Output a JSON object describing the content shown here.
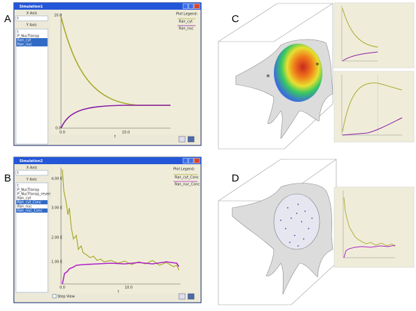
{
  "labels": {
    "a": "A",
    "b": "B",
    "c": "C",
    "d": "D"
  },
  "window_a": {
    "title": "Simulation1",
    "x_axis": "X Axis",
    "x_value": "t",
    "y_axis": "Y Axis",
    "variables": [
      "t",
      "P_NucTransp",
      "Ran_cyt",
      "Ran_nuc"
    ],
    "legend_title": "Plot Legend:",
    "legend": [
      "Ran_cyt",
      "Ran_nuc"
    ],
    "yticks": [
      "10.0",
      "0.0"
    ],
    "xticks": [
      "0.0",
      "10.0"
    ],
    "x_label": "t"
  },
  "window_b": {
    "title": "Simulation2",
    "x_axis": "X Axis",
    "x_value": "t",
    "y_axis": "Y Axis",
    "variables": [
      "t",
      "P_NucTransp",
      "P_NucTransp_reverse",
      "Ran_cyt",
      "Ran_cyt_Conc",
      "Ran_nuc",
      "Ran_nuc_Conc"
    ],
    "legend_title": "Plot Legend:",
    "legend": [
      "Ran_cyt_Conc",
      "Ran_nuc_Conc"
    ],
    "yticks": [
      "4.00 E",
      "3.00 E",
      "2.00 E",
      "1.00 E"
    ],
    "xticks": [
      "0.0",
      "10.0"
    ],
    "x_label": "t",
    "step_view": "Step View"
  },
  "panel_c": {
    "markers": [
      "*",
      "*"
    ]
  }
}
